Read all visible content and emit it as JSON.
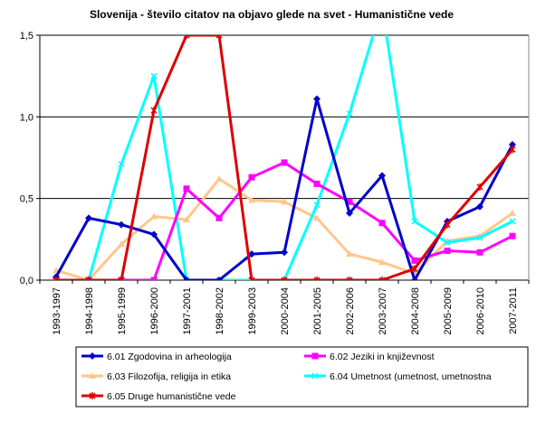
{
  "chart_data": {
    "type": "line",
    "title": "Slovenija - število citatov na objavo glede na svet - Humanistične vede",
    "xlabel": "",
    "ylabel": "",
    "ylim": [
      0,
      1.5
    ],
    "yticks": [
      "0,0",
      "0,5",
      "1,0",
      "1,5"
    ],
    "grid": "horizontal",
    "legend_position": "bottom",
    "categories": [
      "1993-1997",
      "1994-1998",
      "1995-1999",
      "1996-2000",
      "1997-2001",
      "1998-2002",
      "1999-2003",
      "2000-2004",
      "2001-2005",
      "2002-2006",
      "2003-2007",
      "2004-2008",
      "2005-2009",
      "2006-2010",
      "2007-2011"
    ],
    "series": [
      {
        "name": "6.01 Zgodovina in arheologija",
        "color": "#0000cc",
        "marker": "diamond",
        "values": [
          0.02,
          0.38,
          0.34,
          0.28,
          0.0,
          0.0,
          0.16,
          0.17,
          1.11,
          0.41,
          0.64,
          0.0,
          0.36,
          0.45,
          0.83
        ]
      },
      {
        "name": "6.02 Jeziki in književnost",
        "color": "#ff00ff",
        "marker": "square",
        "values": [
          0.0,
          0.0,
          0.0,
          0.0,
          0.56,
          0.38,
          0.63,
          0.72,
          0.59,
          0.48,
          0.35,
          0.12,
          0.18,
          0.17,
          0.27
        ]
      },
      {
        "name": "6.03 Filozofija, religija in etika",
        "color": "#ffc68c",
        "marker": "triangle",
        "values": [
          0.06,
          0.0,
          0.22,
          0.39,
          0.37,
          0.62,
          0.49,
          0.48,
          0.38,
          0.16,
          0.11,
          0.04,
          0.24,
          0.27,
          0.41
        ]
      },
      {
        "name": "6.04 Umetnost (umetnost, umetnostna",
        "color": "#00ffff",
        "marker": "x",
        "values": [
          0.0,
          0.0,
          0.71,
          1.25,
          0.0,
          0.0,
          0.0,
          0.0,
          0.46,
          1.02,
          1.68,
          0.36,
          0.23,
          0.26,
          0.36
        ]
      },
      {
        "name": "6.05 Druge humanistične vede",
        "color": "#dd0000",
        "marker": "star",
        "values": [
          0.0,
          0.0,
          0.0,
          1.04,
          1.5,
          1.5,
          0.0,
          0.0,
          0.0,
          0.0,
          0.0,
          0.07,
          0.34,
          0.57,
          0.8
        ]
      }
    ]
  }
}
